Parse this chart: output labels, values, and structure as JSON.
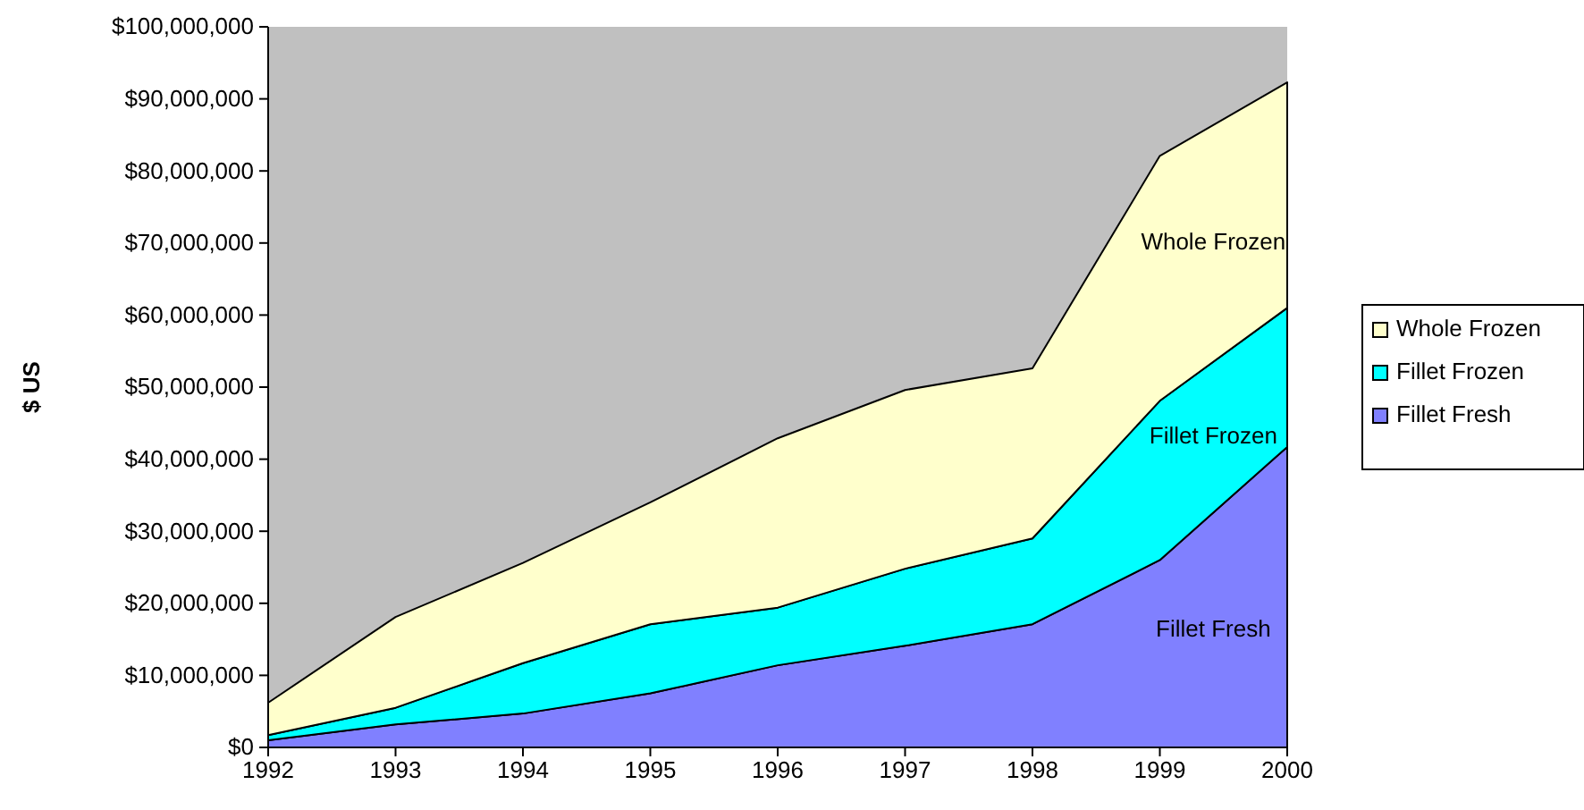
{
  "chart_data": {
    "type": "area",
    "stacked": true,
    "ylabel": "$ US",
    "x": [
      1992,
      1993,
      1994,
      1995,
      1996,
      1997,
      1998,
      1999,
      2000
    ],
    "series": [
      {
        "name": "Fillet Fresh",
        "color": "#8080ff",
        "values": [
          1000000,
          3200000,
          4700000,
          7500000,
          11400000,
          14100000,
          17100000,
          26000000,
          41700000
        ]
      },
      {
        "name": "Fillet Frozen",
        "color": "#00ffff",
        "values": [
          700000,
          2300000,
          7000000,
          9600000,
          8000000,
          10700000,
          11900000,
          22100000,
          19300000
        ]
      },
      {
        "name": "Whole Frozen",
        "color": "#ffffcc",
        "values": [
          4500000,
          12600000,
          13900000,
          16900000,
          23500000,
          24800000,
          23600000,
          34000000,
          31300000
        ]
      }
    ],
    "xlim": [
      1992,
      2000
    ],
    "xticks": [
      1992,
      1993,
      1994,
      1995,
      1996,
      1997,
      1998,
      1999,
      2000
    ],
    "ylim": [
      0,
      100000000
    ],
    "yticks": [
      {
        "value": 0,
        "label": "$0"
      },
      {
        "value": 10000000,
        "label": "$10,000,000"
      },
      {
        "value": 20000000,
        "label": "$20,000,000"
      },
      {
        "value": 30000000,
        "label": "$30,000,000"
      },
      {
        "value": 40000000,
        "label": "$40,000,000"
      },
      {
        "value": 50000000,
        "label": "$50,000,000"
      },
      {
        "value": 60000000,
        "label": "$60,000,000"
      },
      {
        "value": 70000000,
        "label": "$70,000,000"
      },
      {
        "value": 80000000,
        "label": "$80,000,000"
      },
      {
        "value": 90000000,
        "label": "$90,000,000"
      },
      {
        "value": 100000000,
        "label": "$100,000,000"
      }
    ],
    "grid": false,
    "legend": "right"
  }
}
